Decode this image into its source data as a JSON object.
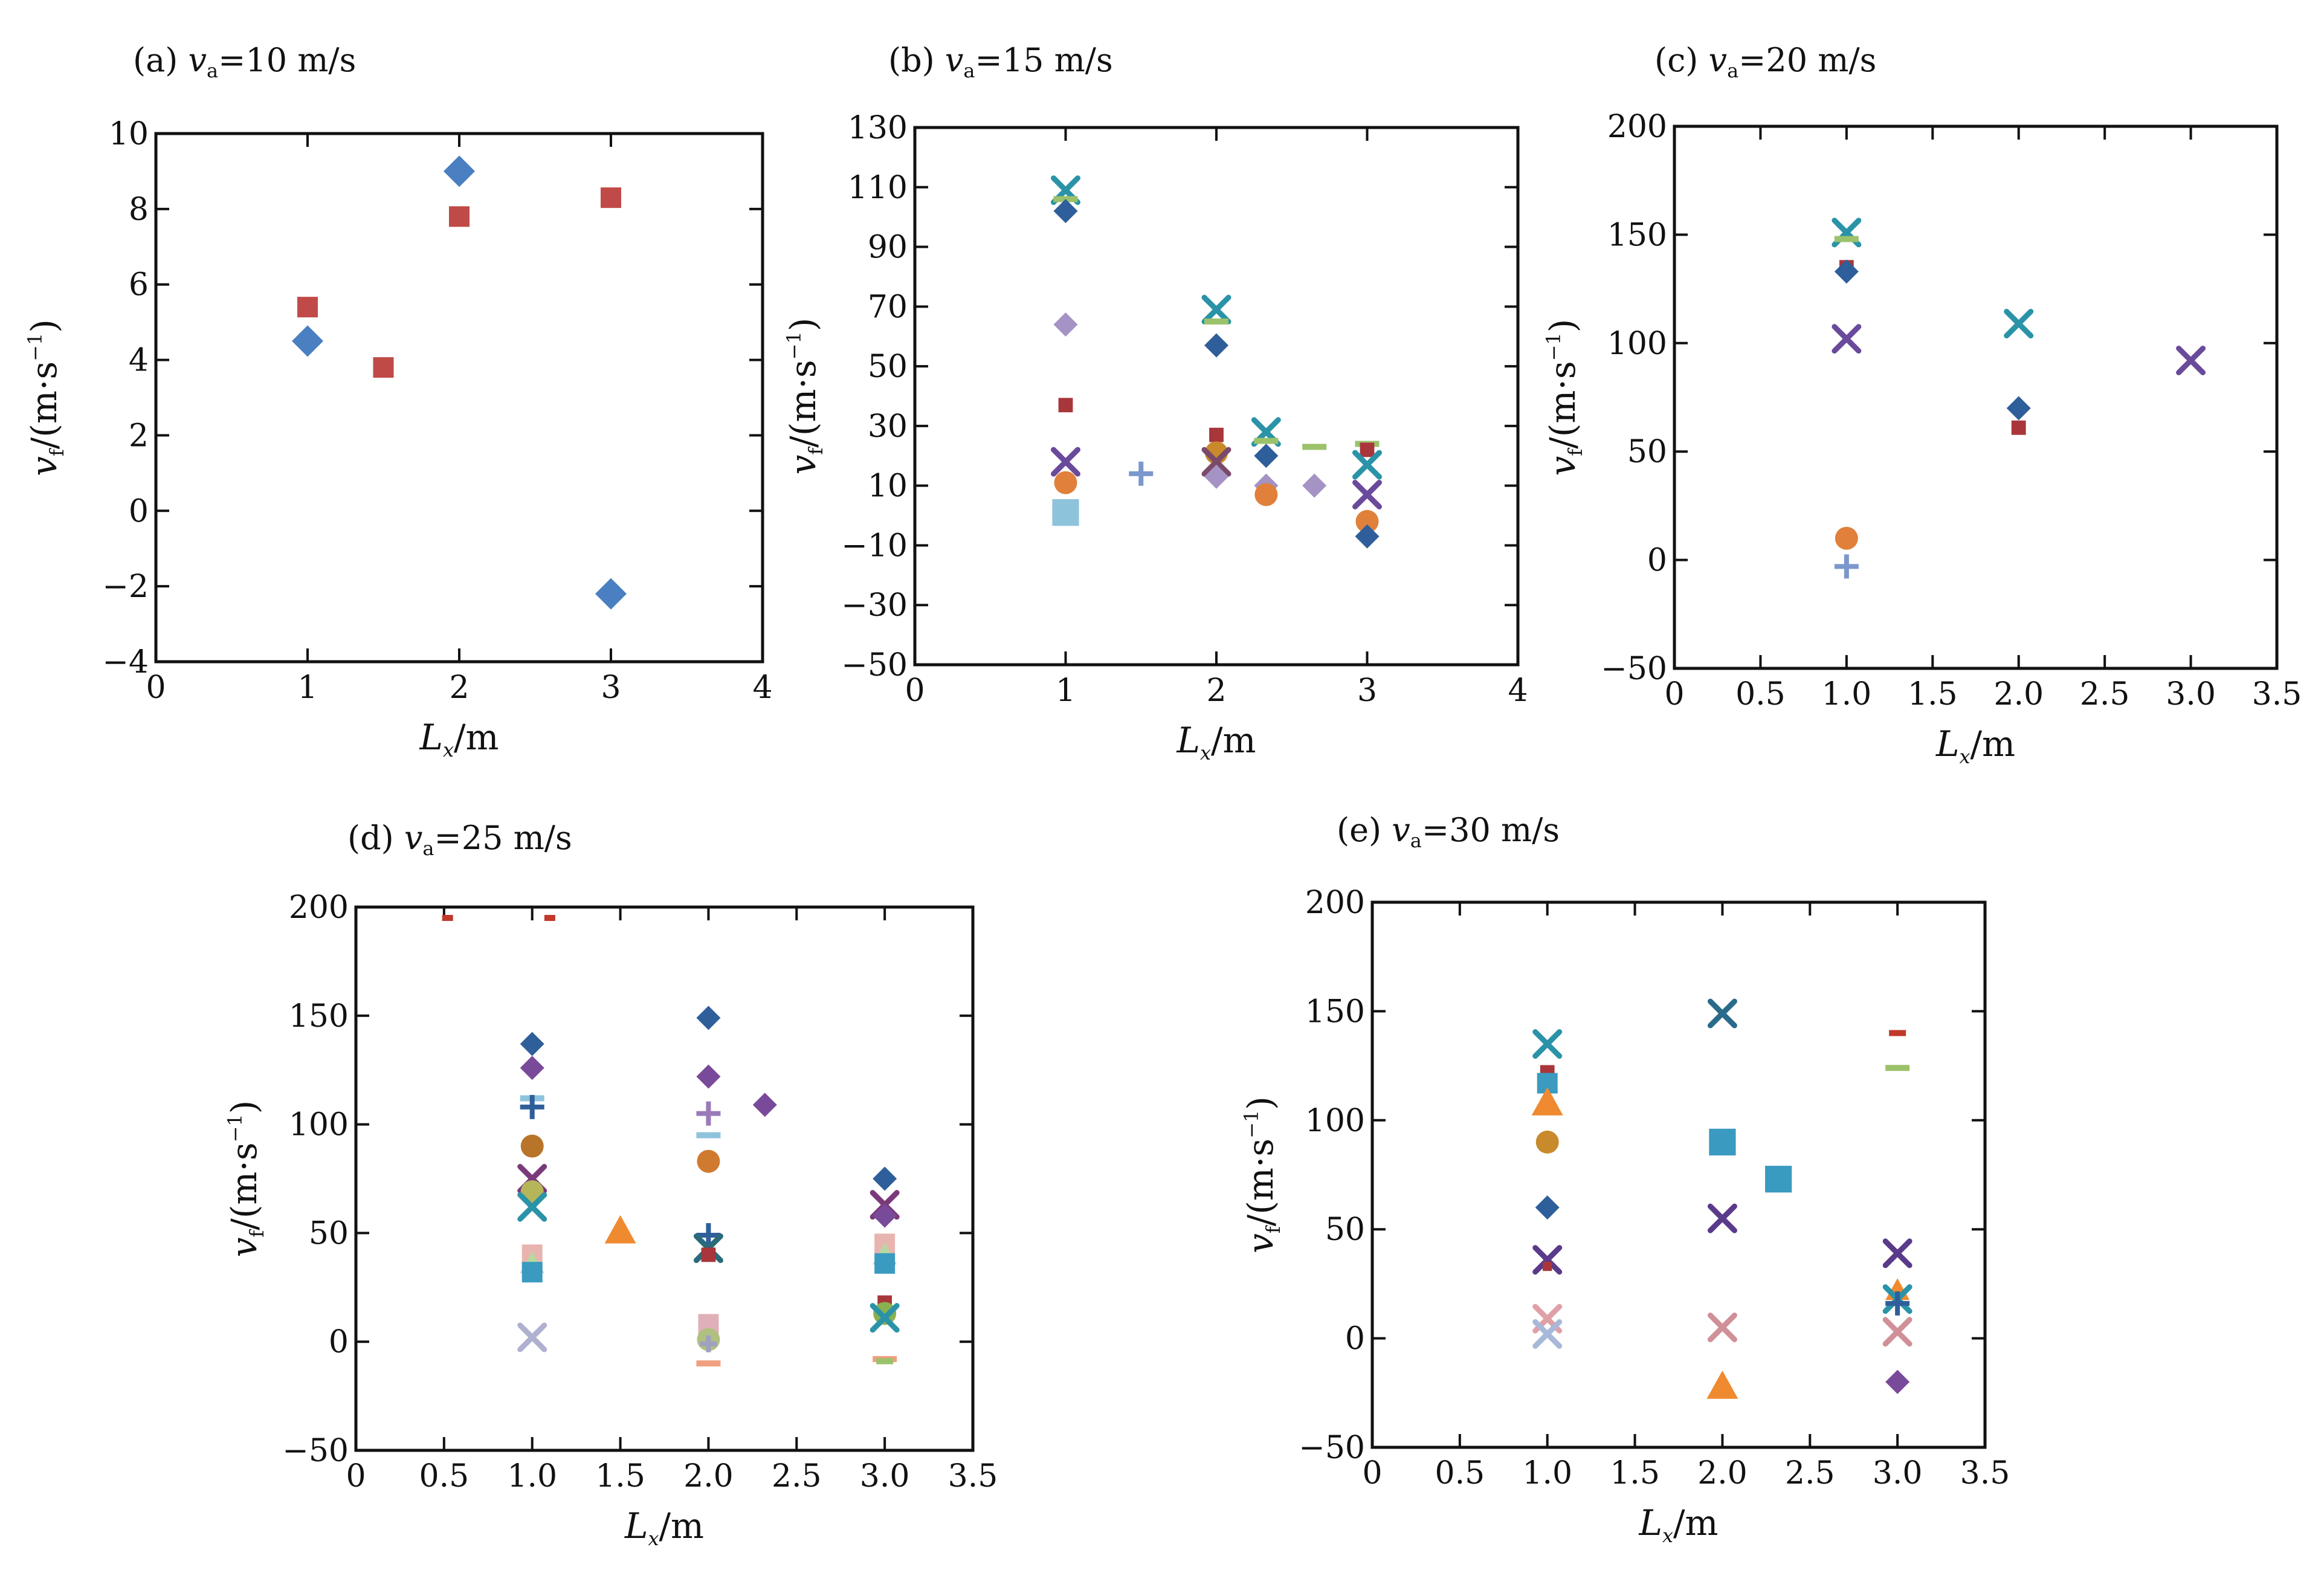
{
  "figure": {
    "ylabel": {
      "var": "v",
      "sub": "f",
      "unit": "/(m·s",
      "sup": "−1",
      "close": ")"
    },
    "xlabel": {
      "var": "L",
      "sub": "x",
      "unit": "/m"
    }
  },
  "chart_data": [
    {
      "id": "a",
      "type": "scatter",
      "title": {
        "prefix": "(a) ",
        "var": "v",
        "sub": "a",
        "rest": "=10 m/s"
      },
      "xlim": [
        0,
        4
      ],
      "ylim": [
        -4,
        10
      ],
      "xticks": [
        "0",
        "1",
        "2",
        "3",
        "4"
      ],
      "yticks": [
        "−4",
        "−2",
        "0",
        "2",
        "4",
        "6",
        "8",
        "10"
      ],
      "grid": false,
      "points": [
        {
          "x": 1,
          "y": 4.5,
          "marker": "diamond",
          "color": "#4a7fc1",
          "size": "l"
        },
        {
          "x": 2,
          "y": 9.0,
          "marker": "diamond",
          "color": "#4a7fc1",
          "size": "l"
        },
        {
          "x": 3,
          "y": -2.2,
          "marker": "diamond",
          "color": "#4a7fc1",
          "size": "l"
        },
        {
          "x": 1,
          "y": 5.4,
          "marker": "square",
          "color": "#c04a48",
          "size": "m"
        },
        {
          "x": 1.5,
          "y": 3.8,
          "marker": "square",
          "color": "#c04a48",
          "size": "m"
        },
        {
          "x": 2,
          "y": 7.8,
          "marker": "square",
          "color": "#c04a48",
          "size": "m"
        },
        {
          "x": 3,
          "y": 8.3,
          "marker": "square",
          "color": "#c04a48",
          "size": "m"
        }
      ]
    },
    {
      "id": "b",
      "type": "scatter",
      "title": {
        "prefix": "(b) ",
        "var": "v",
        "sub": "a",
        "rest": "=15 m/s"
      },
      "xlim": [
        0,
        4
      ],
      "ylim": [
        -50,
        130
      ],
      "xticks": [
        "0",
        "1",
        "2",
        "3",
        "4"
      ],
      "yticks": [
        "−50",
        "−30",
        "−10",
        "10",
        "30",
        "50",
        "70",
        "90",
        "110",
        "130"
      ],
      "grid": false,
      "points": [
        {
          "x": 1,
          "y": 109,
          "marker": "x",
          "color": "#2a93a8",
          "size": "m"
        },
        {
          "x": 1,
          "y": 106,
          "marker": "dash",
          "color": "#9bc26a",
          "size": "m"
        },
        {
          "x": 1,
          "y": 102,
          "marker": "diamond",
          "color": "#2f5f9a",
          "size": "m"
        },
        {
          "x": 1,
          "y": 64,
          "marker": "diamond",
          "color": "#a493c4",
          "size": "m"
        },
        {
          "x": 1,
          "y": 37,
          "marker": "square",
          "color": "#a8363a",
          "size": "s"
        },
        {
          "x": 1,
          "y": 18,
          "marker": "x",
          "color": "#6a4a9a",
          "size": "m"
        },
        {
          "x": 1,
          "y": 11,
          "marker": "circle",
          "color": "#e0803a",
          "size": "m"
        },
        {
          "x": 1,
          "y": 1,
          "marker": "square",
          "color": "#8ec3dc",
          "size": "l"
        },
        {
          "x": 1.5,
          "y": 14,
          "marker": "plus",
          "color": "#7b97cc",
          "size": "m"
        },
        {
          "x": 2,
          "y": 69,
          "marker": "x",
          "color": "#2a93a8",
          "size": "m"
        },
        {
          "x": 2,
          "y": 65,
          "marker": "dash",
          "color": "#9bc26a",
          "size": "m"
        },
        {
          "x": 2,
          "y": 57,
          "marker": "diamond",
          "color": "#2f5f9a",
          "size": "m"
        },
        {
          "x": 2,
          "y": 27,
          "marker": "square",
          "color": "#a8363a",
          "size": "s"
        },
        {
          "x": 2,
          "y": 21,
          "marker": "circle",
          "color": "#c88a2a",
          "size": "m"
        },
        {
          "x": 2,
          "y": 18,
          "marker": "x",
          "color": "#7a4a6a",
          "size": "m"
        },
        {
          "x": 2,
          "y": 13,
          "marker": "diamond",
          "color": "#a493c4",
          "size": "m"
        },
        {
          "x": 2.33,
          "y": 28,
          "marker": "x",
          "color": "#2a93a8",
          "size": "m"
        },
        {
          "x": 2.33,
          "y": 25,
          "marker": "dash",
          "color": "#9bc26a",
          "size": "m"
        },
        {
          "x": 2.33,
          "y": 20,
          "marker": "diamond",
          "color": "#2f5f9a",
          "size": "m"
        },
        {
          "x": 2.33,
          "y": 10,
          "marker": "diamond",
          "color": "#a493c4",
          "size": "m"
        },
        {
          "x": 2.33,
          "y": 7,
          "marker": "circle",
          "color": "#e0803a",
          "size": "m"
        },
        {
          "x": 2.65,
          "y": 23,
          "marker": "dash",
          "color": "#9bc26a",
          "size": "m"
        },
        {
          "x": 2.65,
          "y": 10,
          "marker": "diamond",
          "color": "#a493c4",
          "size": "m"
        },
        {
          "x": 3,
          "y": 24,
          "marker": "dash",
          "color": "#9bc26a",
          "size": "m"
        },
        {
          "x": 3,
          "y": 22,
          "marker": "square",
          "color": "#a8363a",
          "size": "s"
        },
        {
          "x": 3,
          "y": 17,
          "marker": "x",
          "color": "#2a93a8",
          "size": "m"
        },
        {
          "x": 3,
          "y": 7,
          "marker": "x",
          "color": "#6a4a9a",
          "size": "m"
        },
        {
          "x": 3,
          "y": -2,
          "marker": "circle",
          "color": "#e0803a",
          "size": "m"
        },
        {
          "x": 3,
          "y": -7,
          "marker": "diamond",
          "color": "#2f5f9a",
          "size": "m"
        }
      ]
    },
    {
      "id": "c",
      "type": "scatter",
      "title": {
        "prefix": "(c) ",
        "var": "v",
        "sub": "a",
        "rest": "=20 m/s"
      },
      "xlim": [
        0,
        3.5
      ],
      "ylim": [
        -50,
        200
      ],
      "xticks": [
        "0",
        "0.5",
        "1.0",
        "1.5",
        "2.0",
        "2.5",
        "3.0",
        "3.5"
      ],
      "yticks": [
        "−50",
        "0",
        "50",
        "100",
        "150",
        "200"
      ],
      "grid": false,
      "points": [
        {
          "x": 1,
          "y": 151,
          "marker": "x",
          "color": "#2a93a8",
          "size": "m"
        },
        {
          "x": 1,
          "y": 148,
          "marker": "dash",
          "color": "#9bc26a",
          "size": "m"
        },
        {
          "x": 1,
          "y": 135,
          "marker": "square",
          "color": "#a8363a",
          "size": "s"
        },
        {
          "x": 1,
          "y": 133,
          "marker": "diamond",
          "color": "#2f5f9a",
          "size": "m"
        },
        {
          "x": 1,
          "y": 102,
          "marker": "x",
          "color": "#6a4a9a",
          "size": "m"
        },
        {
          "x": 1,
          "y": 10,
          "marker": "circle",
          "color": "#e0803a",
          "size": "m"
        },
        {
          "x": 1,
          "y": -3,
          "marker": "plus",
          "color": "#7b97cc",
          "size": "m"
        },
        {
          "x": 2,
          "y": 109,
          "marker": "x",
          "color": "#2a93a8",
          "size": "m"
        },
        {
          "x": 2,
          "y": 70,
          "marker": "diamond",
          "color": "#2f5f9a",
          "size": "m"
        },
        {
          "x": 2,
          "y": 61,
          "marker": "square",
          "color": "#a8363a",
          "size": "s"
        },
        {
          "x": 3,
          "y": 92,
          "marker": "x",
          "color": "#6a4a9a",
          "size": "m"
        }
      ]
    },
    {
      "id": "d",
      "type": "scatter",
      "title": {
        "prefix": "(d) ",
        "var": "v",
        "sub": "a",
        "rest": "=25 m/s"
      },
      "xlim": [
        0,
        3.5
      ],
      "ylim": [
        -50,
        200
      ],
      "xticks": [
        "0",
        "0.5",
        "1.0",
        "1.5",
        "2.0",
        "2.5",
        "3.0",
        "3.5"
      ],
      "yticks": [
        "−50",
        "0",
        "50",
        "100",
        "150",
        "200"
      ],
      "grid": false,
      "points": [
        {
          "x": 0.52,
          "y": 195,
          "marker": "dash",
          "color": "#c0392b",
          "size": "xs"
        },
        {
          "x": 1.1,
          "y": 195,
          "marker": "dash",
          "color": "#c0392b",
          "size": "xs"
        },
        {
          "x": 1,
          "y": 137,
          "marker": "diamond",
          "color": "#2f5f9a",
          "size": "m"
        },
        {
          "x": 1,
          "y": 126,
          "marker": "diamond",
          "color": "#7a4a9a",
          "size": "m"
        },
        {
          "x": 1,
          "y": 112,
          "marker": "dash",
          "color": "#8ec3dc",
          "size": "m"
        },
        {
          "x": 1,
          "y": 108,
          "marker": "plus",
          "color": "#2f5f9a",
          "size": "m"
        },
        {
          "x": 1,
          "y": 90,
          "marker": "circle",
          "color": "#b8752a",
          "size": "m"
        },
        {
          "x": 1,
          "y": 75,
          "marker": "x",
          "color": "#7a3a7a",
          "size": "m"
        },
        {
          "x": 1,
          "y": 69,
          "marker": "circle",
          "color": "#b5b55a",
          "size": "m"
        },
        {
          "x": 1,
          "y": 62,
          "marker": "x",
          "color": "#2a93a8",
          "size": "m"
        },
        {
          "x": 1,
          "y": 40,
          "marker": "square",
          "color": "#e8b4b0",
          "size": "m"
        },
        {
          "x": 1,
          "y": 36,
          "marker": "triangle",
          "color": "#b8d8a0",
          "size": "m"
        },
        {
          "x": 1,
          "y": 32,
          "marker": "square",
          "color": "#3a9ac0",
          "size": "m"
        },
        {
          "x": 1,
          "y": 2,
          "marker": "x",
          "color": "#b0b0d0",
          "size": "m"
        },
        {
          "x": 1.5,
          "y": 51,
          "marker": "triangle",
          "color": "#f08a30",
          "size": "l"
        },
        {
          "x": 2,
          "y": 149,
          "marker": "diamond",
          "color": "#2f5f9a",
          "size": "m"
        },
        {
          "x": 2,
          "y": 122,
          "marker": "diamond",
          "color": "#7a4a9a",
          "size": "m"
        },
        {
          "x": 2,
          "y": 105,
          "marker": "plus",
          "color": "#9a7ab8",
          "size": "m"
        },
        {
          "x": 2,
          "y": 95,
          "marker": "dash",
          "color": "#8ec3dc",
          "size": "m"
        },
        {
          "x": 2,
          "y": 83,
          "marker": "circle",
          "color": "#d07a30",
          "size": "m"
        },
        {
          "x": 2,
          "y": 49,
          "marker": "plus",
          "color": "#2f5f9a",
          "size": "m"
        },
        {
          "x": 2,
          "y": 43,
          "marker": "x",
          "color": "#2a6a7a",
          "size": "m"
        },
        {
          "x": 2,
          "y": 40,
          "marker": "square",
          "color": "#a8363a",
          "size": "s"
        },
        {
          "x": 2,
          "y": 8,
          "marker": "square",
          "color": "#e0b0b8",
          "size": "m"
        },
        {
          "x": 2,
          "y": 1,
          "marker": "circle",
          "color": "#b0c080",
          "size": "m"
        },
        {
          "x": 2,
          "y": -1,
          "marker": "plus",
          "color": "#a0a0c0",
          "size": "s"
        },
        {
          "x": 2,
          "y": -10,
          "marker": "dash",
          "color": "#f0a080",
          "size": "m"
        },
        {
          "x": 2.32,
          "y": 109,
          "marker": "diamond",
          "color": "#7a4a9a",
          "size": "m"
        },
        {
          "x": 3,
          "y": 75,
          "marker": "diamond",
          "color": "#2f5f9a",
          "size": "m"
        },
        {
          "x": 3,
          "y": 63,
          "marker": "x",
          "color": "#7a3a7a",
          "size": "m"
        },
        {
          "x": 3,
          "y": 58,
          "marker": "diamond",
          "color": "#7a4a9a",
          "size": "m"
        },
        {
          "x": 3,
          "y": 45,
          "marker": "square",
          "color": "#e8b4b0",
          "size": "m"
        },
        {
          "x": 3,
          "y": 40,
          "marker": "triangle",
          "color": "#b8d8a0",
          "size": "m"
        },
        {
          "x": 3,
          "y": 36,
          "marker": "square",
          "color": "#3a9ac0",
          "size": "m"
        },
        {
          "x": 3,
          "y": 18,
          "marker": "square",
          "color": "#a8363a",
          "size": "s"
        },
        {
          "x": 3,
          "y": 13,
          "marker": "circle",
          "color": "#8ab050",
          "size": "m"
        },
        {
          "x": 3,
          "y": 11,
          "marker": "x",
          "color": "#2a93a8",
          "size": "m"
        },
        {
          "x": 3,
          "y": -8,
          "marker": "dash",
          "color": "#f0a080",
          "size": "m"
        },
        {
          "x": 3,
          "y": -9,
          "marker": "dash",
          "color": "#9bc26a",
          "size": "s"
        }
      ]
    },
    {
      "id": "e",
      "type": "scatter",
      "title": {
        "prefix": "(e) ",
        "var": "v",
        "sub": "a",
        "rest": "=30 m/s"
      },
      "xlim": [
        0,
        3.5
      ],
      "ylim": [
        -50,
        200
      ],
      "xticks": [
        "0",
        "0.5",
        "1.0",
        "1.5",
        "2.0",
        "2.5",
        "3.0",
        "3.5"
      ],
      "yticks": [
        "−50",
        "0",
        "50",
        "100",
        "150",
        "200"
      ],
      "grid": false,
      "points": [
        {
          "x": 1,
          "y": 135,
          "marker": "x",
          "color": "#2a93a8",
          "size": "m"
        },
        {
          "x": 1,
          "y": 122,
          "marker": "square",
          "color": "#a8363a",
          "size": "s"
        },
        {
          "x": 1,
          "y": 117,
          "marker": "square",
          "color": "#3a9ac0",
          "size": "m"
        },
        {
          "x": 1,
          "y": 108,
          "marker": "triangle",
          "color": "#f08a30",
          "size": "l"
        },
        {
          "x": 1,
          "y": 90,
          "marker": "circle",
          "color": "#c88a2a",
          "size": "m"
        },
        {
          "x": 1,
          "y": 60,
          "marker": "diamond",
          "color": "#2f5f9a",
          "size": "m"
        },
        {
          "x": 1,
          "y": 36,
          "marker": "x",
          "color": "#5a3a8a",
          "size": "m"
        },
        {
          "x": 1,
          "y": 33,
          "marker": "square",
          "color": "#a8363a",
          "size": "xs"
        },
        {
          "x": 1,
          "y": 9,
          "marker": "x",
          "color": "#e0a0a8",
          "size": "m"
        },
        {
          "x": 1,
          "y": 2,
          "marker": "x",
          "color": "#a8b8d8",
          "size": "m"
        },
        {
          "x": 2,
          "y": 149,
          "marker": "x",
          "color": "#2a6a8a",
          "size": "m"
        },
        {
          "x": 2,
          "y": 90,
          "marker": "square",
          "color": "#3a9ac0",
          "size": "l"
        },
        {
          "x": 2,
          "y": 55,
          "marker": "x",
          "color": "#5a3a8a",
          "size": "m"
        },
        {
          "x": 2,
          "y": 5,
          "marker": "x",
          "color": "#d09098",
          "size": "m"
        },
        {
          "x": 2,
          "y": -22,
          "marker": "triangle",
          "color": "#f08a30",
          "size": "l"
        },
        {
          "x": 2.32,
          "y": 73,
          "marker": "square",
          "color": "#3a9ac0",
          "size": "l"
        },
        {
          "x": 3,
          "y": 140,
          "marker": "dash",
          "color": "#c0392b",
          "size": "s"
        },
        {
          "x": 3,
          "y": 124,
          "marker": "dash",
          "color": "#9bc26a",
          "size": "m"
        },
        {
          "x": 3,
          "y": 39,
          "marker": "x",
          "color": "#5a3a8a",
          "size": "m"
        },
        {
          "x": 3,
          "y": 22,
          "marker": "triangle",
          "color": "#f08a30",
          "size": "m"
        },
        {
          "x": 3,
          "y": 18,
          "marker": "x",
          "color": "#2a93a8",
          "size": "m"
        },
        {
          "x": 3,
          "y": 16,
          "marker": "plus",
          "color": "#2f5f9a",
          "size": "m"
        },
        {
          "x": 3,
          "y": 3,
          "marker": "x",
          "color": "#d09098",
          "size": "m"
        },
        {
          "x": 3,
          "y": -20,
          "marker": "diamond",
          "color": "#7a4a9a",
          "size": "m"
        }
      ]
    }
  ]
}
